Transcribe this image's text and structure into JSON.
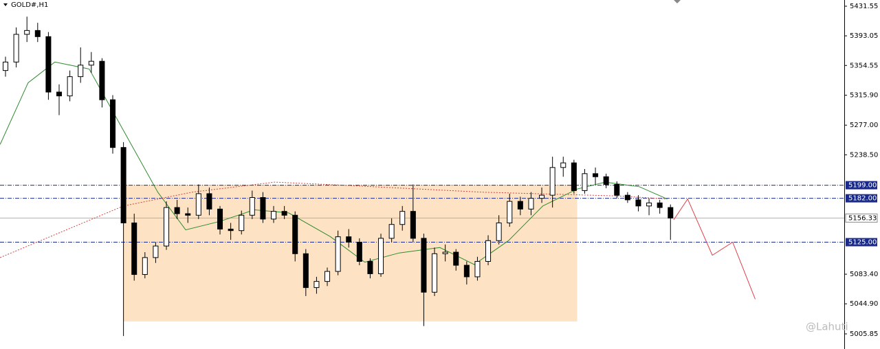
{
  "chart_data": {
    "type": "candlestick",
    "title": "GOLD#,H1",
    "watermark": "@Lahuti",
    "xlim": [
      -0.513,
      78.2
    ],
    "ylim": [
      4986.2,
      5439.6
    ],
    "yticks": [
      5431.55,
      5393.05,
      5354.55,
      {
        "value": 5315.9,
        "label": "5315.90"
      },
      {
        "value": 5277,
        "label": "5277.00"
      },
      {
        "value": 5238.5,
        "label": "5238.50"
      },
      {
        "value": 5083.4,
        "label": "5083.40"
      },
      {
        "value": 5044.9,
        "label": "5044.90"
      },
      5005.85
    ],
    "open": [
      5348,
      5359,
      5395,
      5400,
      5392,
      5320,
      5315,
      5340,
      5355,
      5360,
      5310,
      5248,
      5150,
      5083,
      5105,
      5120,
      5170,
      5162,
      5160,
      5188,
      5168,
      5142,
      5140,
      5160,
      5183,
      5155,
      5165,
      5160,
      5110,
      5066,
      5074,
      5087,
      5132,
      5125,
      5100,
      5084,
      5130,
      5148,
      5165,
      5130,
      5060,
      5110,
      5112,
      5095,
      5080,
      5100,
      5127,
      5150,
      5178,
      5168,
      5182,
      5186,
      5222,
      5228,
      5192,
      5214,
      5210,
      5200,
      5186,
      5180,
      5172,
      5176,
      5170
    ],
    "high": [
      5366,
      5404,
      5418,
      5410,
      5398,
      5330,
      5348,
      5378,
      5372,
      5364,
      5316,
      5255,
      5162,
      5112,
      5125,
      5178,
      5180,
      5170,
      5200,
      5196,
      5172,
      5150,
      5166,
      5192,
      5190,
      5172,
      5172,
      5165,
      5116,
      5080,
      5092,
      5140,
      5142,
      5130,
      5104,
      5136,
      5156,
      5172,
      5200,
      5136,
      5118,
      5122,
      5116,
      5100,
      5106,
      5134,
      5160,
      5188,
      5184,
      5190,
      5196,
      5236,
      5236,
      5232,
      5220,
      5222,
      5214,
      5204,
      5190,
      5186,
      5182,
      5180,
      5174
    ],
    "low": [
      5340,
      5352,
      5385,
      5385,
      5310,
      5290,
      5308,
      5332,
      5345,
      5300,
      5240,
      5003,
      5075,
      5078,
      5098,
      5115,
      5155,
      5150,
      5155,
      5160,
      5135,
      5128,
      5135,
      5155,
      5150,
      5150,
      5155,
      5100,
      5055,
      5058,
      5068,
      5082,
      5118,
      5095,
      5078,
      5080,
      5125,
      5140,
      5125,
      5016,
      5055,
      5100,
      5088,
      5070,
      5075,
      5095,
      5122,
      5145,
      5160,
      5160,
      5176,
      5170,
      5210,
      5188,
      5188,
      5200,
      5195,
      5182,
      5176,
      5165,
      5160,
      5162,
      5128
    ],
    "close": [
      5359,
      5395,
      5400,
      5392,
      5320,
      5315,
      5340,
      5355,
      5360,
      5310,
      5248,
      5150,
      5083,
      5105,
      5120,
      5170,
      5162,
      5160,
      5188,
      5168,
      5142,
      5140,
      5160,
      5183,
      5155,
      5165,
      5160,
      5110,
      5066,
      5074,
      5087,
      5132,
      5125,
      5100,
      5084,
      5130,
      5148,
      5165,
      5130,
      5060,
      5110,
      5112,
      5095,
      5080,
      5100,
      5127,
      5150,
      5178,
      5168,
      5182,
      5186,
      5222,
      5228,
      5192,
      5214,
      5210,
      5200,
      5186,
      5180,
      5172,
      5176,
      5170,
      5156.33
    ],
    "lines": [
      {
        "color": "#2e8b2e",
        "style": "solid",
        "x": [
          -0.5,
          2.1,
          4.6,
          7.8,
          11,
          14.2,
          16.8,
          20,
          23.2,
          26.4,
          30.3,
          33.5,
          36.7,
          40.5,
          43.7,
          46.9,
          50.1,
          53.3,
          55.9,
          59.1,
          61.7
        ],
        "values": [
          5252,
          5332,
          5359,
          5350,
          5270,
          5190,
          5141,
          5152,
          5167,
          5163,
          5132,
          5099,
          5111,
          5118,
          5096,
          5127,
          5172,
          5194,
          5203,
          5197,
          5181
        ]
      },
      {
        "color": "#d04040",
        "style": "dotted",
        "x": [
          -0.5,
          11,
          17.4,
          25.1,
          31.5,
          44.4,
          57.2,
          61.7
        ],
        "values": [
          5105,
          5172,
          5190,
          5203,
          5199,
          5190,
          5185,
          5181
        ]
      },
      {
        "color": "#e0404a",
        "style": "solid",
        "x": [
          62.3,
          63.6,
          65.9,
          67.8,
          69.9
        ],
        "values": [
          5154,
          5181,
          5108,
          5125,
          5051
        ]
      }
    ],
    "zone": {
      "color": "#fde3c3",
      "x": [
        11,
        53.3
      ],
      "y": [
        5022,
        5199.5
      ]
    },
    "levels": [
      {
        "value": 5199,
        "label": "5199.00"
      },
      {
        "value": 5182,
        "label": "5182.00"
      },
      {
        "value": 5125,
        "label": "5125.00"
      }
    ],
    "last_price": 5156.33
  }
}
